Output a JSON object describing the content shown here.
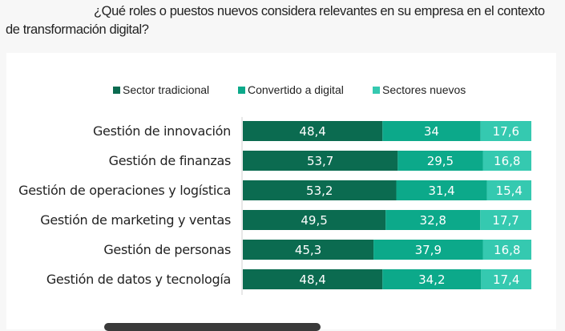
{
  "question": "¿Qué roles o puestos nuevos considera relevantes en su empresa en el contexto de transformación digital?",
  "chart_data": {
    "type": "bar",
    "orientation": "horizontal",
    "stacked": true,
    "legend_position": "top",
    "grid": false,
    "xlim": [
      0,
      100
    ],
    "categories": [
      "Gestión de innovación",
      "Gestión de finanzas",
      "Gestión de operaciones y logística",
      "Gestión de marketing y ventas",
      "Gestión de personas",
      "Gestión de datos y tecnología"
    ],
    "series": [
      {
        "name": "Sector tradicional",
        "color": "#0b6b50",
        "values": [
          48.4,
          53.7,
          53.2,
          49.5,
          45.3,
          48.4
        ],
        "labels": [
          "48,4",
          "53,7",
          "53,2",
          "49,5",
          "45,3",
          "48,4"
        ]
      },
      {
        "name": "Convertido a digital",
        "color": "#0ca98a",
        "values": [
          34,
          29.5,
          31.4,
          32.8,
          37.9,
          34.2
        ],
        "labels": [
          "34",
          "29,5",
          "31,4",
          "32,8",
          "37,9",
          "34,2"
        ]
      },
      {
        "name": "Sectores nuevos",
        "color": "#35c9b0",
        "values": [
          17.6,
          16.8,
          15.4,
          17.7,
          16.8,
          17.4
        ],
        "labels": [
          "17,6",
          "16,8",
          "15,4",
          "17,7",
          "16,8",
          "17,4"
        ]
      }
    ]
  }
}
